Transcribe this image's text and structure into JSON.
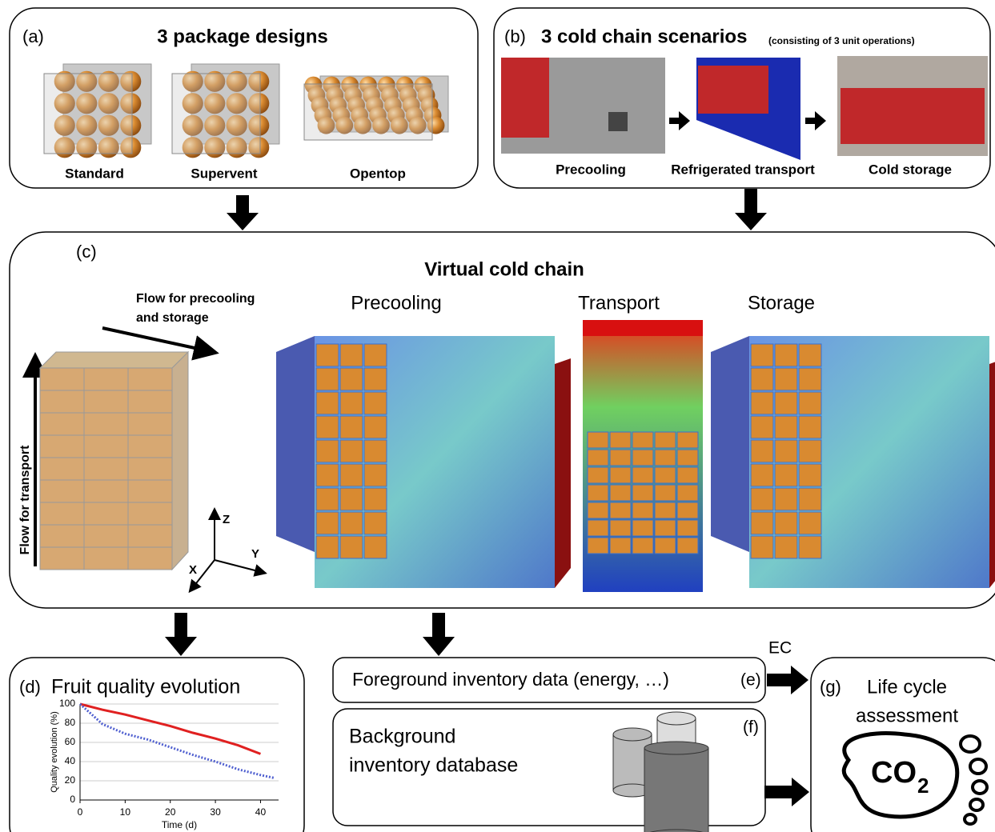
{
  "panel_a": {
    "label": "(a)",
    "title": "3 package designs",
    "items": [
      "Standard",
      "Supervent",
      "Opentop"
    ]
  },
  "panel_b": {
    "label": "(b)",
    "title": "3 cold chain scenarios",
    "subtitle": "(consisting of 3 unit operations)",
    "items": [
      "Precooling",
      "Refrigerated transport",
      "Cold storage"
    ]
  },
  "panel_c": {
    "label": "(c)",
    "title": "Virtual cold chain",
    "flow_horizontal": [
      "Flow for precooling",
      "and storage"
    ],
    "flow_vertical": "Flow for transport",
    "axes": [
      "Z",
      "Y",
      "X"
    ],
    "views": [
      "Precooling",
      "Transport",
      "Storage"
    ]
  },
  "panel_d": {
    "label": "(d)",
    "title": "Fruit quality evolution",
    "chart_data": {
      "type": "line",
      "x_label": "Time (d)",
      "y_label": "Quality evolution (%)",
      "x": [
        0,
        5,
        10,
        15,
        20,
        25,
        30,
        35,
        40,
        43
      ],
      "series": [
        {
          "color": "#e02020",
          "values": [
            100,
            94,
            89,
            83,
            77,
            70,
            64,
            57,
            48,
            null
          ]
        },
        {
          "color": "#5060d0",
          "values": [
            100,
            79,
            69,
            63,
            55,
            47,
            40,
            32,
            26,
            23
          ]
        }
      ],
      "xlim": [
        0,
        44
      ],
      "xticks": [
        0,
        10,
        20,
        30,
        40
      ],
      "ylim": [
        0,
        100
      ],
      "yticks": [
        0,
        20,
        40,
        60,
        80,
        100
      ],
      "grid": true
    }
  },
  "panel_e": {
    "text": "Foreground inventory data (energy, …)",
    "label": "(e)"
  },
  "arrow_label": "EC",
  "panel_f": {
    "lines": [
      "Background",
      "inventory database"
    ],
    "label": "(f)"
  },
  "panel_g": {
    "label": "(g)",
    "lines": [
      "Life cycle",
      "assessment"
    ],
    "co": "CO",
    "sub": "2"
  }
}
